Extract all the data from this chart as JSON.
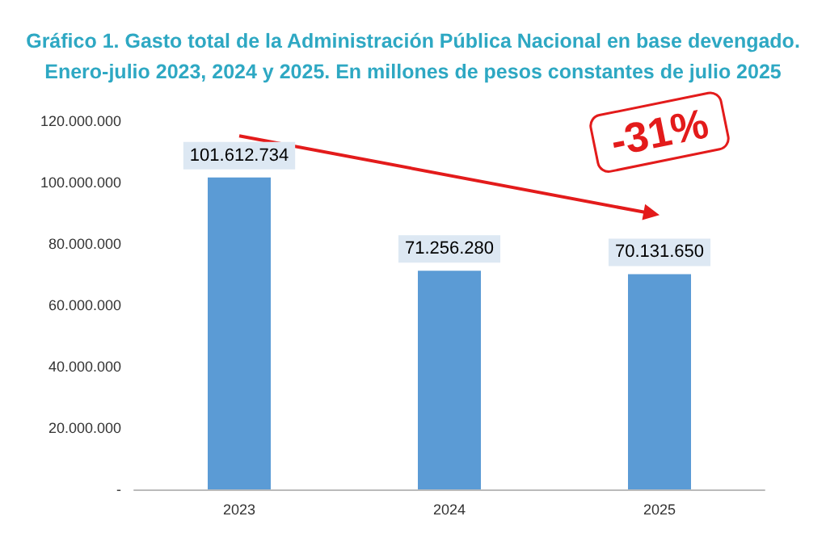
{
  "chart_data": {
    "type": "bar",
    "title": "Gráfico 1. Gasto total de la Administración Pública Nacional en base devengado.",
    "subtitle": "Enero-julio 2023, 2024 y 2025. En millones de pesos constantes de julio 2025",
    "categories": [
      "2023",
      "2024",
      "2025"
    ],
    "values": [
      101612734,
      71256280,
      70131650
    ],
    "value_labels": [
      "101.612.734",
      "71.256.280",
      "70.131.650"
    ],
    "color": "#5b9bd5",
    "ylim": [
      0,
      120000000
    ],
    "yticks": [
      {
        "value": 0,
        "label": "-"
      },
      {
        "value": 20000000,
        "label": "20.000.000"
      },
      {
        "value": 40000000,
        "label": "40.000.000"
      },
      {
        "value": 60000000,
        "label": "60.000.000"
      },
      {
        "value": 80000000,
        "label": "80.000.000"
      },
      {
        "value": 100000000,
        "label": "100.000.000"
      },
      {
        "value": 120000000,
        "label": "120.000.000"
      }
    ],
    "grid": false,
    "annotations": [
      "-31%"
    ]
  }
}
